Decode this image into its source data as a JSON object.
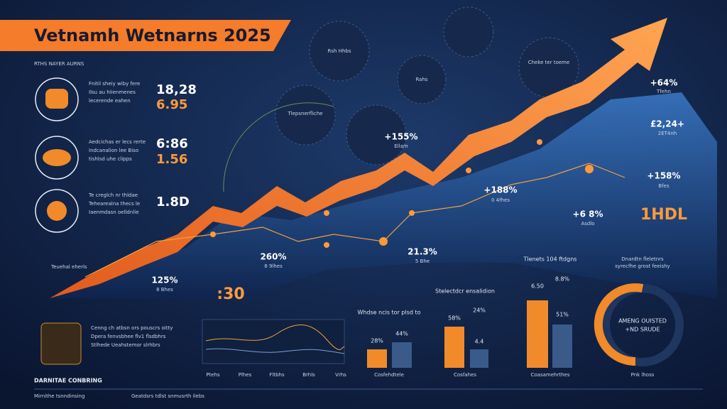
{
  "header": {
    "title": "Vetnamh Wetnarns 2025",
    "subtitle": "RTHS NAYER AURNS"
  },
  "metrics": [
    {
      "lines": [
        "Fnitil sheiy wiby fere",
        "Ilsu au hiienmenes",
        "lecerende eahen"
      ],
      "value": "18,28",
      "sub": "6.95"
    },
    {
      "lines": [
        "Aedcichas er lecs rerte",
        "Indcanalion lee Biso",
        "tishlsd uhe clipps"
      ],
      "value": "6:86",
      "sub": "1.56"
    },
    {
      "lines": [
        "Te creglch nr thldae",
        "Tehearealna thecs le",
        "Iaenmdasn oelldnlie"
      ],
      "value": "1.8D",
      "sub": null
    }
  ],
  "callouts": [
    {
      "value": "+155%",
      "label": "Ellam"
    },
    {
      "value": "+188%",
      "label": "0 4fhes"
    },
    {
      "value": "+158%",
      "label": "Bfes"
    },
    {
      "value": "£2,24+",
      "label": "2ET4nh"
    },
    {
      "value": "+64%",
      "label": "Tfehn"
    },
    {
      "value": "+6 8%",
      "label": "Asdlo"
    },
    {
      "value": "1HDL",
      "label": null
    },
    {
      "value": "260%",
      "label": "8 9lhes"
    },
    {
      "value": "21.3%",
      "label": "5 Bhe"
    },
    {
      "value": "125%",
      "label": "8 Bhes"
    },
    {
      "value": ":30",
      "label": null
    }
  ],
  "bubbles": [
    "Rsh Hhbs",
    "Cheke ter toeme",
    "Rahs",
    "Tlepsnerfliche"
  ],
  "left_note": "Teuehal eherls",
  "line_panel": {
    "lines": [
      "Cenng ch atbsn ors pouscrs oitty",
      "Dpera fenvsbhee flv1 flsdbhrs",
      "Stlhede Ueahstemor slrhbrs"
    ],
    "ticks": [
      "Ptehs",
      "Plhes",
      "Fltbhs",
      "Brhls",
      "Vrhs"
    ]
  },
  "bar_groups": [
    {
      "title": "Whdse ncis tor plsd to",
      "labels": [
        "28%",
        "44%"
      ],
      "caption": "Cosfehdtele"
    },
    {
      "title": "Stelectdcr ensalidion",
      "labels": [
        "58%",
        "24%",
        "4.4"
      ],
      "caption": "Cosfahes"
    },
    {
      "title": "Tlenets 104 ftdgns",
      "labels": [
        "6.50",
        "8.8%",
        "51%"
      ],
      "caption": "Coasamehrthes"
    }
  ],
  "donut": {
    "title": "Dnardtn fleletnrs",
    "subtitle": "syrecfhe grost feeishy",
    "label_top": "AMENG OUISTED",
    "label_bottom": "+ND SRUDE",
    "caption": "Pnk lhoss"
  },
  "footer": {
    "left": "DARNITAE CONBRING",
    "small": "Mirnithe tsnndinsing",
    "right": "Geatdsrs tdlst snmusrth ilebs"
  }
}
